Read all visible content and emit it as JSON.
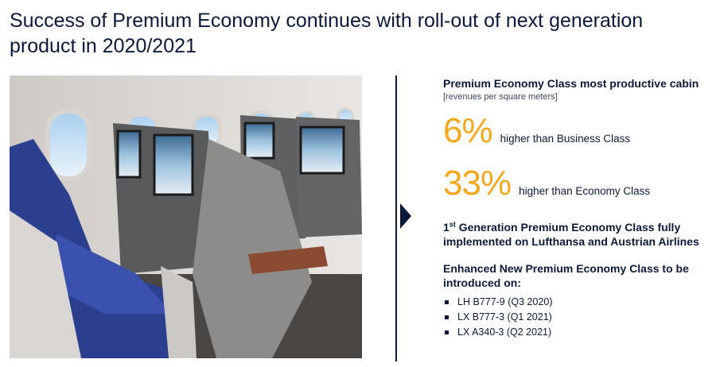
{
  "slide": {
    "title": "Success of Premium Economy continues with roll-out of next generation product in 2020/2021"
  },
  "panel": {
    "heading": "Premium Economy Class most productive cabin",
    "note": "[revenues per square meters]",
    "stats": [
      {
        "value": "6%",
        "text": "higher than Business Class"
      },
      {
        "value": "33%",
        "text": "higher than Economy Class"
      }
    ],
    "gen1": {
      "ordinal_number": "1",
      "ordinal_suffix": "st",
      "text": " Generation Premium Economy Class fully implemented on Lufthansa and Austrian Airlines"
    },
    "enhanced": {
      "heading": "Enhanced New Premium Economy Class to be introduced on:",
      "routes": [
        "LH B777-9 (Q3 2020)",
        "LX B777-3 (Q1 2021)",
        "LX A340-3 (Q2 2021)"
      ]
    }
  },
  "colors": {
    "navy": "#0b1a3a",
    "accent": "#f5a81c"
  },
  "icons": {
    "arrow": "triangle-right-icon"
  }
}
